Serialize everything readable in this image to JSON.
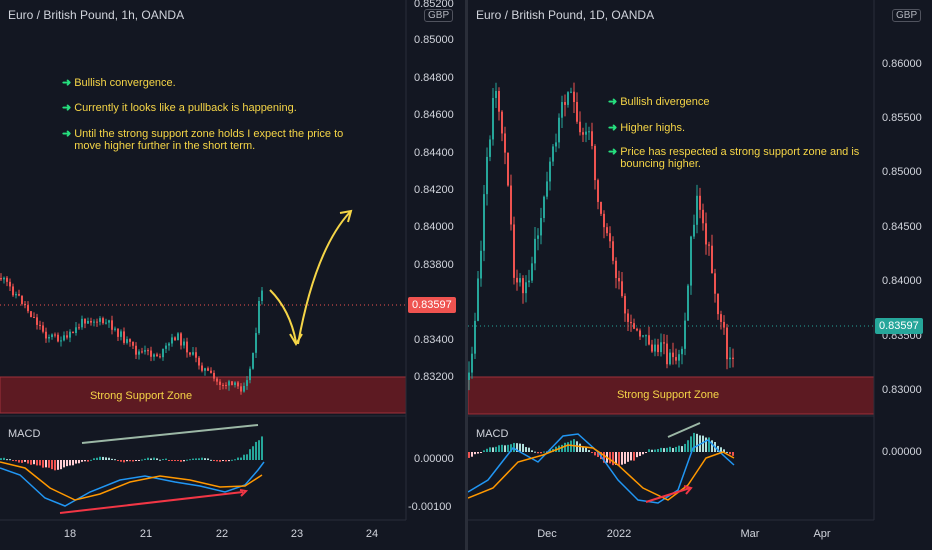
{
  "left": {
    "title": "Euro / British Pound, 1h, OANDA",
    "currency": "GBP",
    "annotations": [
      "Bullish convergence.",
      "Currently it looks like a pullback is happening.",
      "Until the strong support zone holds I expect the price to move higher further in the short term."
    ],
    "zone_label": "Strong Support Zone",
    "indicator_label": "MACD",
    "price_axis": [
      "0.85200",
      "0.85000",
      "0.84800",
      "0.84600",
      "0.84400",
      "0.84200",
      "0.84000",
      "0.83800",
      "0.83400",
      "0.83200"
    ],
    "macd_axis": [
      "0.00000",
      "-0.00100"
    ],
    "time_axis": [
      "18",
      "21",
      "22",
      "23",
      "24"
    ],
    "last_price": "0.83597",
    "colors": {
      "up": "#26a69a",
      "down": "#ef5350",
      "badge": "#ef5350",
      "zone": "#5d1a22",
      "annotation": "#f5d547",
      "arrow": "#26e07f"
    }
  },
  "right": {
    "title": "Euro / British Pound, 1D, OANDA",
    "currency": "GBP",
    "annotations": [
      "Bullish divergence",
      "Higher highs.",
      "Price has respected a strong support zone and is bouncing higher."
    ],
    "zone_label": "Strong Support Zone",
    "indicator_label": "MACD",
    "price_axis": [
      "0.86000",
      "0.85500",
      "0.85000",
      "0.84500",
      "0.84000",
      "0.83500",
      "0.83000"
    ],
    "macd_axis": [
      "0.00000"
    ],
    "time_axis": [
      "Dec",
      "2022",
      "Mar",
      "Apr"
    ],
    "last_price": "0.83597",
    "colors": {
      "up": "#26a69a",
      "down": "#ef5350",
      "badge": "#26a69a",
      "zone": "#5d1a22"
    }
  }
}
